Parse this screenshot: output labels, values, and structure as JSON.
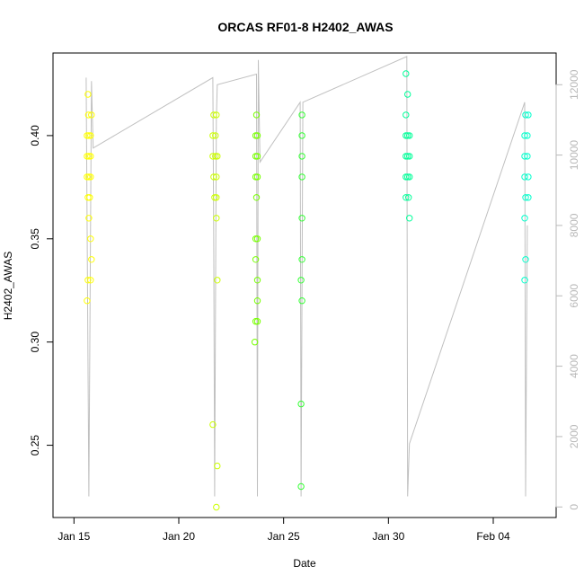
{
  "chart_data": {
    "type": "scatter",
    "title": "ORCAS RF01-8 H2402_AWAS",
    "xlabel": "Date",
    "ylabel": "H2402_AWAS",
    "xlim": [
      "2016-01-14",
      "2016-02-07"
    ],
    "ylim": [
      0.215,
      0.44
    ],
    "y2lim": [
      -300,
      12900
    ],
    "x_ticks": [
      {
        "date": "2016-01-15",
        "label": "Jan 15"
      },
      {
        "date": "2016-01-20",
        "label": "Jan 20"
      },
      {
        "date": "2016-01-25",
        "label": "Jan 25"
      },
      {
        "date": "2016-01-30",
        "label": "Jan 30"
      },
      {
        "date": "2016-02-04",
        "label": "Feb 04"
      }
    ],
    "y_ticks": [
      0.25,
      0.3,
      0.35,
      0.4
    ],
    "y2_ticks": [
      0,
      2000,
      4000,
      6000,
      8000,
      10000,
      12000
    ],
    "grid": false,
    "legend": "none",
    "secondary_series": {
      "type": "line",
      "color": "#c0c0c0",
      "points": [
        [
          "2016-01-15T14:00",
          12200
        ],
        [
          "2016-01-15T17:00",
          300
        ],
        [
          "2016-01-15T20:00",
          12100
        ],
        [
          "2016-01-15T22:00",
          10200
        ],
        [
          "2016-01-21T15:00",
          12200
        ],
        [
          "2016-01-21T16:00",
          7400
        ],
        [
          "2016-01-21T17:00",
          300
        ],
        [
          "2016-01-21T19:00",
          11000
        ],
        [
          "2016-01-21T20:00",
          12000
        ],
        [
          "2016-01-23T17:00",
          12300
        ],
        [
          "2016-01-23T18:00",
          300
        ],
        [
          "2016-01-23T19:00",
          12700
        ],
        [
          "2016-01-23T21:00",
          9800
        ],
        [
          "2016-01-25T19:00",
          11500
        ],
        [
          "2016-01-25T20:00",
          300
        ],
        [
          "2016-01-25T22:00",
          11500
        ],
        [
          "2016-01-30T21:00",
          12800
        ],
        [
          "2016-01-30T22:00",
          300
        ],
        [
          "2016-01-31T00:00",
          1800
        ],
        [
          "2016-02-05T12:00",
          11500
        ],
        [
          "2016-02-05T13:00",
          300
        ],
        [
          "2016-02-05T15:00",
          8000
        ]
      ]
    },
    "flights": [
      {
        "color": "#ffff00",
        "points": [
          [
            "2016-01-15T16:00",
            0.42
          ],
          [
            "2016-01-15T16:30",
            0.41
          ],
          [
            "2016-01-15T15:00",
            0.4
          ],
          [
            "2016-01-15T17:00",
            0.4
          ],
          [
            "2016-01-15T19:00",
            0.4
          ],
          [
            "2016-01-15T15:00",
            0.39
          ],
          [
            "2016-01-15T17:00",
            0.39
          ],
          [
            "2016-01-15T19:00",
            0.39
          ],
          [
            "2016-01-15T15:00",
            0.38
          ],
          [
            "2016-01-15T17:00",
            0.38
          ],
          [
            "2016-01-15T19:00",
            0.38
          ],
          [
            "2016-01-15T16:00",
            0.37
          ],
          [
            "2016-01-15T18:00",
            0.37
          ],
          [
            "2016-01-15T17:00",
            0.36
          ],
          [
            "2016-01-15T19:00",
            0.35
          ],
          [
            "2016-01-15T20:00",
            0.34
          ],
          [
            "2016-01-15T16:00",
            0.33
          ],
          [
            "2016-01-15T19:00",
            0.33
          ],
          [
            "2016-01-15T15:00",
            0.32
          ],
          [
            "2016-01-15T20:00",
            0.41
          ]
        ]
      },
      {
        "color": "#ccff00",
        "points": [
          [
            "2016-01-21T16:00",
            0.41
          ],
          [
            "2016-01-21T19:00",
            0.41
          ],
          [
            "2016-01-21T15:00",
            0.4
          ],
          [
            "2016-01-21T18:00",
            0.4
          ],
          [
            "2016-01-21T15:00",
            0.39
          ],
          [
            "2016-01-21T18:00",
            0.39
          ],
          [
            "2016-01-21T20:00",
            0.39
          ],
          [
            "2016-01-21T16:00",
            0.38
          ],
          [
            "2016-01-21T19:00",
            0.38
          ],
          [
            "2016-01-21T17:00",
            0.37
          ],
          [
            "2016-01-21T19:00",
            0.37
          ],
          [
            "2016-01-21T19:00",
            0.36
          ],
          [
            "2016-01-21T20:00",
            0.33
          ],
          [
            "2016-01-21T15:00",
            0.26
          ],
          [
            "2016-01-21T20:00",
            0.24
          ],
          [
            "2016-01-21T19:00",
            0.22
          ]
        ]
      },
      {
        "color": "#77ff00",
        "points": [
          [
            "2016-01-23T17:00",
            0.41
          ],
          [
            "2016-01-23T16:00",
            0.4
          ],
          [
            "2016-01-23T18:00",
            0.4
          ],
          [
            "2016-01-23T16:00",
            0.39
          ],
          [
            "2016-01-23T18:00",
            0.39
          ],
          [
            "2016-01-23T16:00",
            0.38
          ],
          [
            "2016-01-23T18:00",
            0.38
          ],
          [
            "2016-01-23T17:00",
            0.37
          ],
          [
            "2016-01-23T16:00",
            0.35
          ],
          [
            "2016-01-23T18:00",
            0.35
          ],
          [
            "2016-01-23T16:00",
            0.34
          ],
          [
            "2016-01-23T18:00",
            0.33
          ],
          [
            "2016-01-23T18:00",
            0.32
          ],
          [
            "2016-01-23T16:00",
            0.31
          ],
          [
            "2016-01-23T18:00",
            0.31
          ],
          [
            "2016-01-23T15:00",
            0.3
          ]
        ]
      },
      {
        "color": "#33ff33",
        "points": [
          [
            "2016-01-25T21:00",
            0.41
          ],
          [
            "2016-01-25T21:00",
            0.4
          ],
          [
            "2016-01-25T21:00",
            0.39
          ],
          [
            "2016-01-25T21:00",
            0.38
          ],
          [
            "2016-01-25T21:00",
            0.36
          ],
          [
            "2016-01-25T21:00",
            0.34
          ],
          [
            "2016-01-25T20:00",
            0.33
          ],
          [
            "2016-01-25T21:00",
            0.32
          ],
          [
            "2016-01-25T20:00",
            0.27
          ],
          [
            "2016-01-25T20:00",
            0.23
          ]
        ]
      },
      {
        "color": "#00ff99",
        "points": [
          [
            "2016-01-30T20:00",
            0.43
          ],
          [
            "2016-01-30T22:00",
            0.42
          ],
          [
            "2016-01-30T20:00",
            0.41
          ],
          [
            "2016-01-30T20:00",
            0.4
          ],
          [
            "2016-01-30T22:00",
            0.4
          ],
          [
            "2016-01-31T00:00",
            0.4
          ],
          [
            "2016-01-30T20:00",
            0.39
          ],
          [
            "2016-01-30T22:00",
            0.39
          ],
          [
            "2016-01-31T00:00",
            0.39
          ],
          [
            "2016-01-30T20:00",
            0.38
          ],
          [
            "2016-01-30T22:00",
            0.38
          ],
          [
            "2016-01-31T00:00",
            0.38
          ],
          [
            "2016-01-30T20:00",
            0.37
          ],
          [
            "2016-01-30T23:00",
            0.37
          ],
          [
            "2016-01-31T00:00",
            0.36
          ]
        ]
      },
      {
        "color": "#00ffcc",
        "points": [
          [
            "2016-02-05T13:00",
            0.41
          ],
          [
            "2016-02-05T16:00",
            0.41
          ],
          [
            "2016-02-05T12:00",
            0.4
          ],
          [
            "2016-02-05T15:00",
            0.4
          ],
          [
            "2016-02-05T12:00",
            0.39
          ],
          [
            "2016-02-05T15:00",
            0.39
          ],
          [
            "2016-02-05T12:00",
            0.38
          ],
          [
            "2016-02-05T16:00",
            0.38
          ],
          [
            "2016-02-05T13:00",
            0.37
          ],
          [
            "2016-02-05T16:00",
            0.37
          ],
          [
            "2016-02-05T12:00",
            0.36
          ],
          [
            "2016-02-05T13:00",
            0.34
          ],
          [
            "2016-02-05T12:00",
            0.33
          ]
        ]
      }
    ]
  }
}
